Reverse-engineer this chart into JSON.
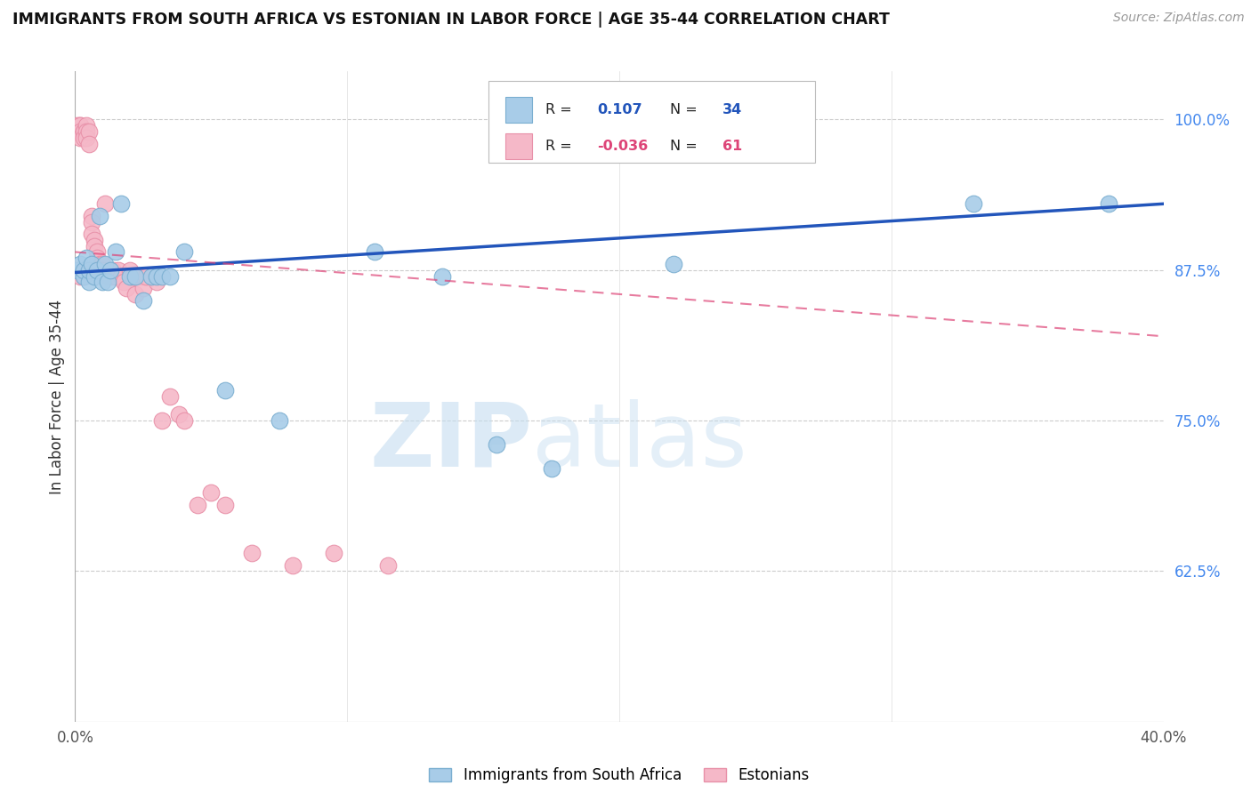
{
  "title": "IMMIGRANTS FROM SOUTH AFRICA VS ESTONIAN IN LABOR FORCE | AGE 35-44 CORRELATION CHART",
  "source": "Source: ZipAtlas.com",
  "ylabel": "In Labor Force | Age 35-44",
  "xlim": [
    0.0,
    0.4
  ],
  "ylim": [
    0.5,
    1.04
  ],
  "ytick_right": [
    0.625,
    0.75,
    0.875,
    1.0
  ],
  "ytick_right_labels": [
    "62.5%",
    "75.0%",
    "87.5%",
    "100.0%"
  ],
  "blue_R": 0.107,
  "blue_N": 34,
  "pink_R": -0.036,
  "pink_N": 61,
  "blue_color": "#a8cce8",
  "pink_color": "#f5b8c8",
  "blue_edge": "#7aaed0",
  "pink_edge": "#e890a8",
  "trend_blue": "#2255bb",
  "trend_pink": "#dd4477",
  "watermark_zip": "ZIP",
  "watermark_atlas": "atlas",
  "legend_label_blue": "Immigrants from South Africa",
  "legend_label_pink": "Estonians",
  "blue_x": [
    0.001,
    0.002,
    0.003,
    0.003,
    0.004,
    0.005,
    0.005,
    0.006,
    0.007,
    0.008,
    0.009,
    0.01,
    0.011,
    0.012,
    0.013,
    0.015,
    0.017,
    0.02,
    0.022,
    0.025,
    0.028,
    0.03,
    0.032,
    0.035,
    0.04,
    0.055,
    0.075,
    0.11,
    0.135,
    0.155,
    0.175,
    0.22,
    0.33,
    0.38
  ],
  "blue_y": [
    0.875,
    0.88,
    0.87,
    0.875,
    0.885,
    0.865,
    0.875,
    0.88,
    0.87,
    0.875,
    0.92,
    0.865,
    0.88,
    0.865,
    0.875,
    0.89,
    0.93,
    0.87,
    0.87,
    0.85,
    0.87,
    0.87,
    0.87,
    0.87,
    0.89,
    0.775,
    0.75,
    0.89,
    0.87,
    0.73,
    0.71,
    0.88,
    0.93,
    0.93
  ],
  "pink_x": [
    0.001,
    0.001,
    0.001,
    0.002,
    0.002,
    0.002,
    0.002,
    0.002,
    0.002,
    0.003,
    0.003,
    0.003,
    0.003,
    0.003,
    0.004,
    0.004,
    0.004,
    0.004,
    0.005,
    0.005,
    0.005,
    0.006,
    0.006,
    0.006,
    0.007,
    0.007,
    0.007,
    0.008,
    0.008,
    0.008,
    0.009,
    0.009,
    0.01,
    0.01,
    0.011,
    0.012,
    0.013,
    0.014,
    0.015,
    0.016,
    0.017,
    0.018,
    0.019,
    0.02,
    0.021,
    0.022,
    0.024,
    0.025,
    0.026,
    0.03,
    0.032,
    0.035,
    0.038,
    0.04,
    0.045,
    0.05,
    0.055,
    0.065,
    0.08,
    0.095,
    0.115
  ],
  "pink_y": [
    0.99,
    0.995,
    0.875,
    0.99,
    0.995,
    0.995,
    0.99,
    0.985,
    0.87,
    0.99,
    0.99,
    0.985,
    0.875,
    0.87,
    0.995,
    0.99,
    0.985,
    0.875,
    0.99,
    0.98,
    0.875,
    0.92,
    0.915,
    0.905,
    0.9,
    0.895,
    0.875,
    0.89,
    0.885,
    0.875,
    0.88,
    0.875,
    0.88,
    0.875,
    0.93,
    0.87,
    0.87,
    0.875,
    0.87,
    0.875,
    0.87,
    0.865,
    0.86,
    0.875,
    0.87,
    0.855,
    0.87,
    0.86,
    0.87,
    0.865,
    0.75,
    0.77,
    0.755,
    0.75,
    0.68,
    0.69,
    0.68,
    0.64,
    0.63,
    0.64,
    0.63
  ],
  "trend_blue_x0": 0.0,
  "trend_blue_y0": 0.873,
  "trend_blue_x1": 0.4,
  "trend_blue_y1": 0.93,
  "trend_pink_x0": 0.0,
  "trend_pink_y0": 0.89,
  "trend_pink_x1": 0.4,
  "trend_pink_y1": 0.82
}
